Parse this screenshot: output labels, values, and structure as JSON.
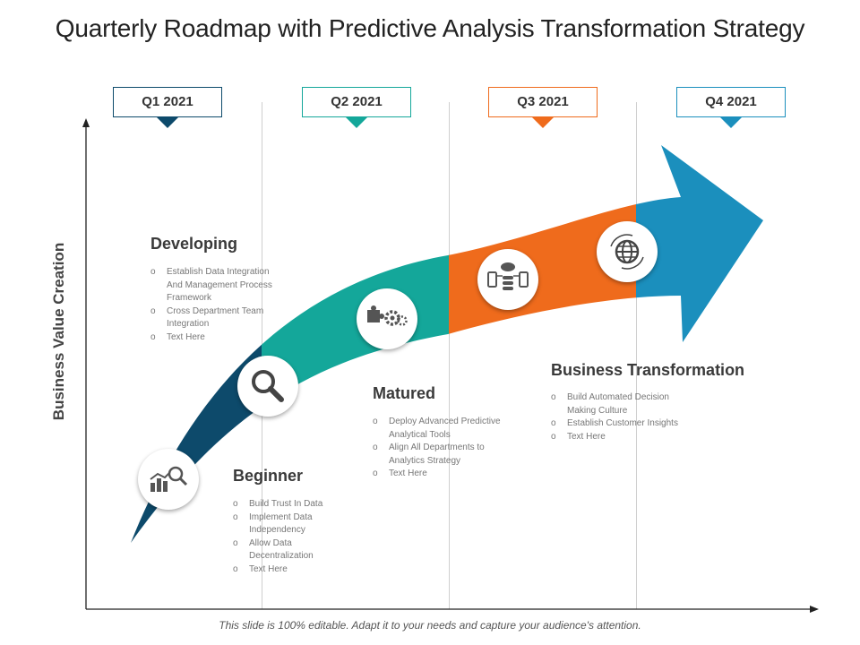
{
  "title": "Quarterly Roadmap with Predictive Analysis Transformation Strategy",
  "y_axis_label": "Business Value Creation",
  "quarters": [
    {
      "label": "Q1 2021",
      "color": "#0d4a6b"
    },
    {
      "label": "Q2 2021",
      "color": "#14a79a"
    },
    {
      "label": "Q3 2021",
      "color": "#ef6b1c"
    },
    {
      "label": "Q4 2021",
      "color": "#1b8fbd"
    }
  ],
  "stages": {
    "beginner": {
      "title": "Beginner",
      "bullets": [
        "Build Trust In Data",
        "Implement Data Independency",
        "Allow Data Decentralization",
        "Text Here"
      ]
    },
    "developing": {
      "title": "Developing",
      "bullets": [
        "Establish Data Integration And Management Process Framework",
        "Cross Department Team Integration",
        "Text Here"
      ]
    },
    "matured": {
      "title": "Matured",
      "bullets": [
        "Deploy Advanced Predictive Analytical Tools",
        "Align All Departments to Analytics Strategy",
        "Text Here"
      ]
    },
    "transformation": {
      "title": "Business Transformation",
      "bullets": [
        "Build Automated Decision Making Culture",
        "Establish Customer Insights",
        "Text Here"
      ]
    }
  },
  "icons": [
    "analytics-chart-icon",
    "magnifier-icon",
    "puzzle-gears-icon",
    "cloud-database-icon",
    "globe-cycle-icon"
  ],
  "footer": "This slide is 100% editable. Adapt it to your needs and capture your audience's attention."
}
